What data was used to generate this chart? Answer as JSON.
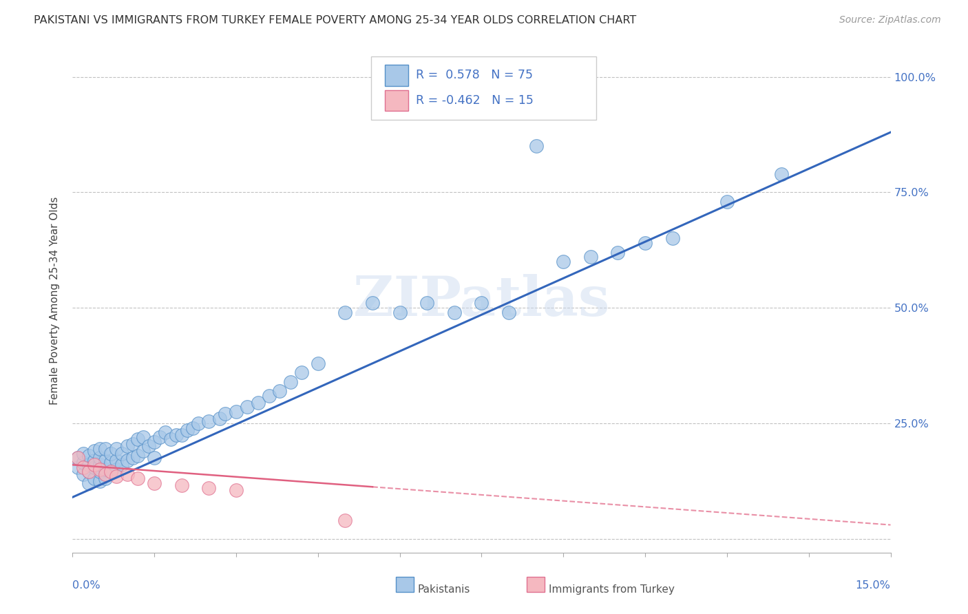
{
  "title": "PAKISTANI VS IMMIGRANTS FROM TURKEY FEMALE POVERTY AMONG 25-34 YEAR OLDS CORRELATION CHART",
  "source": "Source: ZipAtlas.com",
  "ylabel": "Female Poverty Among 25-34 Year Olds",
  "xlim": [
    0,
    0.15
  ],
  "ylim": [
    -0.03,
    1.06
  ],
  "blue_R": 0.578,
  "blue_N": 75,
  "pink_R": -0.462,
  "pink_N": 15,
  "blue_color": "#a8c8e8",
  "blue_edge_color": "#5590c8",
  "blue_line_color": "#3366bb",
  "pink_color": "#f5b8c0",
  "pink_edge_color": "#e07090",
  "pink_line_color": "#e06080",
  "watermark": "ZIPatlas",
  "legend_label_blue": "Pakistanis",
  "legend_label_pink": "Immigrants from Turkey",
  "ytick_vals": [
    0.0,
    0.25,
    0.5,
    0.75,
    1.0
  ],
  "ytick_labels": [
    "",
    "25.0%",
    "50.0%",
    "75.0%",
    "100.0%"
  ],
  "blue_scatter_x": [
    0.001,
    0.001,
    0.002,
    0.002,
    0.002,
    0.003,
    0.003,
    0.003,
    0.003,
    0.004,
    0.004,
    0.004,
    0.004,
    0.005,
    0.005,
    0.005,
    0.005,
    0.005,
    0.006,
    0.006,
    0.006,
    0.006,
    0.007,
    0.007,
    0.007,
    0.008,
    0.008,
    0.008,
    0.009,
    0.009,
    0.01,
    0.01,
    0.011,
    0.011,
    0.012,
    0.012,
    0.013,
    0.013,
    0.014,
    0.015,
    0.015,
    0.016,
    0.017,
    0.018,
    0.019,
    0.02,
    0.021,
    0.022,
    0.023,
    0.025,
    0.027,
    0.028,
    0.03,
    0.032,
    0.034,
    0.036,
    0.038,
    0.04,
    0.042,
    0.045,
    0.05,
    0.055,
    0.06,
    0.065,
    0.07,
    0.075,
    0.08,
    0.085,
    0.09,
    0.095,
    0.1,
    0.105,
    0.11,
    0.12,
    0.13
  ],
  "blue_scatter_y": [
    0.155,
    0.175,
    0.14,
    0.165,
    0.185,
    0.12,
    0.145,
    0.16,
    0.18,
    0.13,
    0.155,
    0.17,
    0.19,
    0.125,
    0.145,
    0.16,
    0.175,
    0.195,
    0.13,
    0.15,
    0.17,
    0.195,
    0.145,
    0.165,
    0.185,
    0.15,
    0.17,
    0.195,
    0.16,
    0.185,
    0.17,
    0.2,
    0.175,
    0.205,
    0.18,
    0.215,
    0.19,
    0.22,
    0.2,
    0.175,
    0.21,
    0.22,
    0.23,
    0.215,
    0.225,
    0.225,
    0.235,
    0.24,
    0.25,
    0.255,
    0.26,
    0.27,
    0.275,
    0.285,
    0.295,
    0.31,
    0.32,
    0.34,
    0.36,
    0.38,
    0.49,
    0.51,
    0.49,
    0.51,
    0.49,
    0.51,
    0.49,
    0.85,
    0.6,
    0.61,
    0.62,
    0.64,
    0.65,
    0.73,
    0.79
  ],
  "pink_scatter_x": [
    0.001,
    0.002,
    0.003,
    0.004,
    0.005,
    0.006,
    0.007,
    0.008,
    0.01,
    0.012,
    0.015,
    0.02,
    0.025,
    0.03,
    0.05
  ],
  "pink_scatter_y": [
    0.175,
    0.155,
    0.145,
    0.16,
    0.15,
    0.14,
    0.145,
    0.135,
    0.14,
    0.13,
    0.12,
    0.115,
    0.11,
    0.105,
    0.04
  ],
  "blue_line_x0": 0.0,
  "blue_line_y0": 0.09,
  "blue_line_x1": 0.15,
  "blue_line_y1": 0.88,
  "pink_line_x0": 0.0,
  "pink_line_y0": 0.16,
  "pink_line_x1": 0.15,
  "pink_line_y1": 0.03
}
